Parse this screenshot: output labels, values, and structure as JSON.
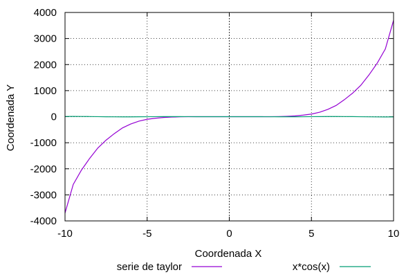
{
  "chart_data": {
    "type": "line",
    "xlabel": "Coordenada X",
    "ylabel": "Coordenada Y",
    "xlim": [
      -10,
      10
    ],
    "ylim": [
      -4000,
      4000
    ],
    "x_ticks": [
      -10,
      -5,
      0,
      5,
      10
    ],
    "y_ticks": [
      -4000,
      -3000,
      -2000,
      -1000,
      0,
      1000,
      2000,
      3000,
      4000
    ],
    "x_tick_labels": [
      "-10",
      "-5",
      "0",
      "5",
      "10"
    ],
    "y_tick_labels": [
      "-4000",
      "-3000",
      "-2000",
      "-1000",
      "0",
      "1000",
      "2000",
      "3000",
      "4000"
    ],
    "grid": true,
    "legend_position": "bottom",
    "series": [
      {
        "name": "serie de taylor",
        "color": "#9400d3",
        "x": [
          -10,
          -9.5,
          -9,
          -8.5,
          -8,
          -7.5,
          -7,
          -6.5,
          -6,
          -5.5,
          -5,
          -4.5,
          -4,
          -3.5,
          -3,
          -2.5,
          -2,
          -1.5,
          -1,
          -0.5,
          0,
          0.5,
          1,
          1.5,
          2,
          2.5,
          3,
          3.5,
          4,
          4.5,
          5,
          5.5,
          6,
          6.5,
          7,
          7.5,
          8,
          8.5,
          9,
          9.5,
          10
        ],
        "y": [
          -3700,
          -2600,
          -2050,
          -1600,
          -1200,
          -900,
          -650,
          -430,
          -280,
          -170,
          -100,
          -60,
          -30,
          -15,
          -5,
          0,
          0,
          0,
          0,
          0,
          0,
          0,
          0,
          0,
          0,
          0,
          5,
          15,
          30,
          60,
          100,
          170,
          280,
          430,
          650,
          900,
          1200,
          1600,
          2050,
          2600,
          3700
        ]
      },
      {
        "name": "x*cos(x)",
        "color": "#009e73",
        "x": [
          -10,
          -9.5,
          -9,
          -8.5,
          -8,
          -7.5,
          -7,
          -6.5,
          -6,
          -5.5,
          -5,
          -4.5,
          -4,
          -3.5,
          -3,
          -2.5,
          -2,
          -1.5,
          -1,
          -0.5,
          0,
          0.5,
          1,
          1.5,
          2,
          2.5,
          3,
          3.5,
          4,
          4.5,
          5,
          5.5,
          6,
          6.5,
          7,
          7.5,
          8,
          8.5,
          9,
          9.5,
          10
        ],
        "y": [
          8.39,
          9.5,
          8.2,
          5.27,
          1.16,
          -2.6,
          -5.28,
          -6.24,
          -5.76,
          -3.89,
          -1.42,
          0.95,
          2.61,
          3.28,
          2.97,
          2.0,
          0.83,
          -0.11,
          -0.54,
          -0.44,
          0,
          0.44,
          0.54,
          0.11,
          -0.83,
          -2.0,
          -2.97,
          -3.28,
          -2.61,
          -0.95,
          1.42,
          3.89,
          5.76,
          6.24,
          5.28,
          2.6,
          -1.16,
          -5.27,
          -8.2,
          -9.5,
          -8.39
        ]
      }
    ]
  }
}
